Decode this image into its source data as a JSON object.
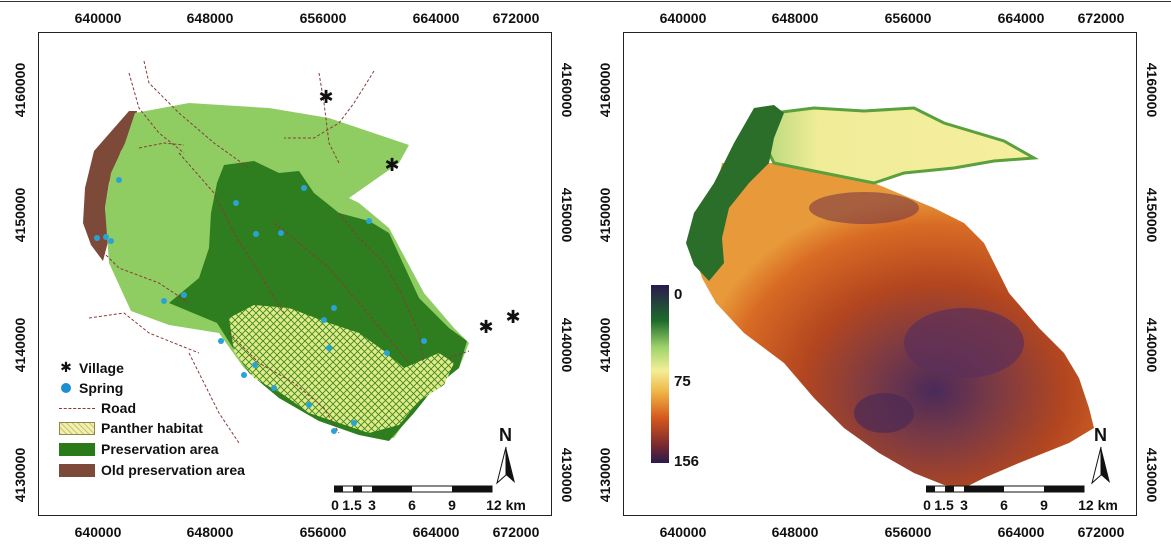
{
  "panel_a": {
    "x_ticks": [
      "640000",
      "648000",
      "656000",
      "664000",
      "672000"
    ],
    "y_ticks": [
      "4160000",
      "4150000",
      "4140000",
      "4130000"
    ],
    "legend": [
      {
        "label": "Village",
        "symbol": "asterisk-icon"
      },
      {
        "label": "Spring",
        "symbol": "dot-icon",
        "color": "#1a8fd1"
      },
      {
        "label": "Road",
        "symbol": "dashed-line-icon",
        "color": "#8b3a3a"
      },
      {
        "label": "Panther habitat",
        "symbol": "hatch-swatch-icon",
        "color": "#f2efb0"
      },
      {
        "label": "Preservation area",
        "symbol": "fill-swatch-icon",
        "color": "#2a7a1a"
      },
      {
        "label": "Old preservation area",
        "symbol": "fill-swatch-icon",
        "color": "#7d4a3a"
      }
    ],
    "scale_labels": [
      "0",
      "1.5",
      "3",
      "6",
      "9",
      "12 km"
    ],
    "north_label": "N",
    "colors": {
      "light_green": "#8fcd62",
      "dark_green": "#2e7d1e",
      "old_area": "#7d4a3a",
      "hatch": "#e9ee9a",
      "spring": "#29a3d6",
      "road": "#8b3a3a"
    }
  },
  "panel_b": {
    "x_ticks": [
      "640000",
      "648000",
      "656000",
      "664000",
      "672000"
    ],
    "y_ticks": [
      "4160000",
      "4150000",
      "4140000",
      "4130000"
    ],
    "colorbar": {
      "labels": [
        "0",
        "75",
        "156"
      ],
      "min": 0,
      "mid": 75,
      "max": 156,
      "colors": [
        "#2a1b4d",
        "#1e6b2a",
        "#9ed36b",
        "#f3ef97",
        "#f0b545",
        "#d5571c",
        "#7a2a2f",
        "#2a1b4d"
      ]
    },
    "scale_labels": [
      "0",
      "1.5",
      "3",
      "6",
      "9",
      "12 km"
    ],
    "north_label": "N"
  }
}
